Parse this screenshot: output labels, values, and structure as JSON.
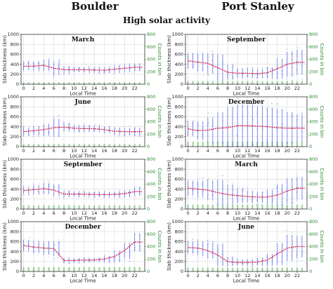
{
  "figure": {
    "left_title": "Boulder",
    "right_title": "Port Stanley",
    "subtitle": "High solar activity"
  },
  "colors": {
    "median_line": "#d6204a",
    "spread_bar": "#6d7de8",
    "scatter_point": "#9aa6f0",
    "counts_bar": "#5cb85c",
    "right_axis": "#2e8b2e",
    "grid": "#d8d8d8"
  },
  "axes": {
    "xlabel": "Local Time",
    "ylabel": "Slab thickness (km)",
    "ylabel_right": "Counts in bin",
    "x_ticks": [
      "0",
      "2",
      "4",
      "6",
      "8",
      "10",
      "12",
      "14",
      "16",
      "18",
      "20",
      "22"
    ],
    "y_ticks": [
      "0",
      "200",
      "400",
      "600",
      "800",
      "1000"
    ],
    "y2_ticks": [
      "0",
      "200",
      "400",
      "600",
      "800"
    ]
  },
  "chart_data": [
    {
      "site": "Boulder",
      "season": "March",
      "type": "scatter",
      "title": "March",
      "xlim": [
        -0.5,
        24
      ],
      "ylim": [
        0,
        1000
      ],
      "y2lim": [
        0,
        800
      ],
      "x": [
        0,
        2,
        4,
        6,
        8,
        10,
        12,
        14,
        16,
        18,
        20,
        22
      ],
      "median": [
        360,
        360,
        380,
        320,
        290,
        290,
        290,
        285,
        280,
        300,
        320,
        340
      ],
      "spread": [
        80,
        90,
        110,
        140,
        70,
        50,
        50,
        50,
        50,
        60,
        70,
        80
      ],
      "counts": [
        30,
        30,
        30,
        30,
        30,
        30,
        30,
        30,
        30,
        30,
        30,
        30
      ]
    },
    {
      "site": "Boulder",
      "season": "June",
      "type": "scatter",
      "title": "June",
      "xlim": [
        -0.5,
        24
      ],
      "ylim": [
        0,
        1000
      ],
      "y2lim": [
        0,
        800
      ],
      "x": [
        0,
        2,
        4,
        6,
        8,
        10,
        12,
        14,
        16,
        18,
        20,
        22
      ],
      "median": [
        300,
        320,
        340,
        380,
        390,
        370,
        360,
        360,
        340,
        310,
        300,
        300
      ],
      "spread": [
        80,
        90,
        120,
        180,
        90,
        70,
        70,
        60,
        60,
        70,
        70,
        80
      ],
      "counts": [
        40,
        40,
        40,
        40,
        40,
        40,
        40,
        40,
        40,
        40,
        40,
        40
      ]
    },
    {
      "site": "Boulder",
      "season": "September",
      "type": "scatter",
      "title": "September",
      "xlim": [
        -0.5,
        24
      ],
      "ylim": [
        0,
        1000
      ],
      "y2lim": [
        0,
        800
      ],
      "x": [
        0,
        2,
        4,
        6,
        8,
        10,
        12,
        14,
        16,
        18,
        20,
        22
      ],
      "median": [
        370,
        390,
        410,
        380,
        300,
        300,
        300,
        290,
        290,
        290,
        310,
        350
      ],
      "spread": [
        70,
        90,
        110,
        120,
        60,
        50,
        50,
        50,
        50,
        60,
        70,
        80
      ],
      "counts": [
        60,
        60,
        60,
        60,
        60,
        60,
        60,
        60,
        60,
        60,
        60,
        60
      ]
    },
    {
      "site": "Boulder",
      "season": "December",
      "type": "scatter",
      "title": "December",
      "xlim": [
        -0.5,
        24
      ],
      "ylim": [
        0,
        1000
      ],
      "y2lim": [
        0,
        800
      ],
      "x": [
        0,
        2,
        4,
        6,
        8,
        10,
        12,
        14,
        16,
        18,
        20,
        22
      ],
      "median": [
        520,
        490,
        470,
        460,
        220,
        220,
        230,
        230,
        250,
        300,
        420,
        590
      ],
      "spread": [
        110,
        120,
        130,
        150,
        50,
        40,
        40,
        40,
        60,
        110,
        160,
        180
      ],
      "counts": [
        70,
        70,
        70,
        70,
        70,
        70,
        70,
        70,
        70,
        70,
        70,
        70
      ]
    },
    {
      "site": "Port Stanley",
      "season": "September",
      "type": "scatter",
      "title": "September",
      "xlim": [
        -0.5,
        24
      ],
      "ylim": [
        0,
        1000
      ],
      "y2lim": [
        0,
        800
      ],
      "x": [
        0,
        2,
        4,
        6,
        8,
        10,
        12,
        14,
        16,
        18,
        20,
        22
      ],
      "median": [
        470,
        440,
        420,
        330,
        240,
        220,
        220,
        210,
        230,
        310,
        400,
        440
      ],
      "spread": [
        150,
        180,
        200,
        260,
        150,
        100,
        90,
        90,
        110,
        200,
        250,
        250
      ],
      "counts": [
        50,
        50,
        50,
        50,
        50,
        50,
        50,
        50,
        50,
        50,
        50,
        50
      ]
    },
    {
      "site": "Port Stanley",
      "season": "December",
      "type": "scatter",
      "title": "December",
      "xlim": [
        -0.5,
        24
      ],
      "ylim": [
        0,
        1000
      ],
      "y2lim": [
        0,
        800
      ],
      "x": [
        0,
        2,
        4,
        6,
        8,
        10,
        12,
        14,
        16,
        18,
        20,
        22
      ],
      "median": [
        360,
        320,
        330,
        370,
        380,
        420,
        420,
        410,
        400,
        380,
        370,
        370
      ],
      "spread": [
        150,
        180,
        260,
        320,
        420,
        420,
        420,
        400,
        380,
        380,
        320,
        280
      ],
      "counts": [
        80,
        80,
        80,
        80,
        80,
        80,
        80,
        80,
        80,
        80,
        80,
        80
      ]
    },
    {
      "site": "Port Stanley",
      "season": "March",
      "type": "scatter",
      "title": "March",
      "xlim": [
        -0.5,
        24
      ],
      "ylim": [
        0,
        1000
      ],
      "y2lim": [
        0,
        800
      ],
      "x": [
        0,
        2,
        4,
        6,
        8,
        10,
        12,
        14,
        16,
        18,
        20,
        22
      ],
      "median": [
        420,
        400,
        380,
        330,
        290,
        270,
        250,
        240,
        240,
        280,
        360,
        420
      ],
      "spread": [
        150,
        170,
        200,
        260,
        200,
        150,
        120,
        110,
        140,
        220,
        260,
        230
      ],
      "counts": [
        70,
        70,
        70,
        70,
        70,
        70,
        70,
        70,
        70,
        70,
        70,
        70
      ]
    },
    {
      "site": "Port Stanley",
      "season": "June",
      "type": "scatter",
      "title": "June",
      "xlim": [
        -0.5,
        24
      ],
      "ylim": [
        0,
        1000
      ],
      "y2lim": [
        0,
        800
      ],
      "x": [
        0,
        2,
        4,
        6,
        8,
        10,
        12,
        14,
        16,
        18,
        20,
        22
      ],
      "median": [
        480,
        470,
        420,
        330,
        200,
        180,
        180,
        190,
        230,
        350,
        470,
        500
      ],
      "spread": [
        120,
        140,
        160,
        220,
        90,
        60,
        60,
        70,
        120,
        220,
        260,
        220
      ],
      "counts": [
        60,
        60,
        60,
        60,
        60,
        60,
        60,
        60,
        60,
        60,
        60,
        60
      ]
    }
  ]
}
